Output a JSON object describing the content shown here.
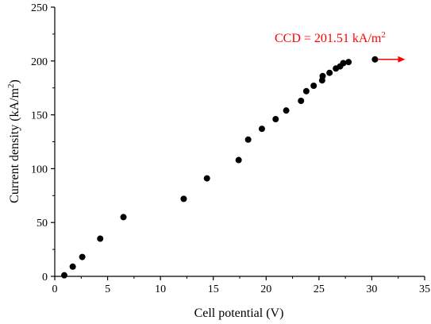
{
  "chart_data": {
    "type": "scatter",
    "xlabel": "Cell potential (V)",
    "ylabel": "Current density (kA/m",
    "ylabel_superscript": "2",
    "ylabel_suffix": ")",
    "xlim": [
      0,
      35
    ],
    "ylim": [
      0,
      250
    ],
    "xticks": [
      0,
      5,
      10,
      15,
      20,
      25,
      30,
      35
    ],
    "yticks": [
      0,
      50,
      100,
      150,
      200,
      250
    ],
    "grid": false,
    "marker_color": "#000000",
    "annotation": {
      "text": "CCD = 201.51 kA/m",
      "superscript": "2",
      "color": "#ff0000",
      "x": 30.3,
      "y": 201.51
    },
    "series": [
      {
        "x": [
          0.9,
          1.7,
          2.6,
          4.3,
          6.5,
          12.2,
          14.4,
          17.4,
          18.3,
          19.6,
          20.9,
          21.9,
          23.3,
          23.8,
          24.5,
          25.3,
          25.35,
          26.0,
          26.6,
          27.0,
          27.3,
          27.8,
          30.3
        ],
        "y": [
          1,
          9,
          18,
          35,
          55,
          72,
          91,
          108,
          127,
          137,
          146,
          154,
          163,
          172,
          177,
          182,
          186,
          189,
          193,
          195,
          198,
          199,
          201.5
        ]
      }
    ]
  }
}
